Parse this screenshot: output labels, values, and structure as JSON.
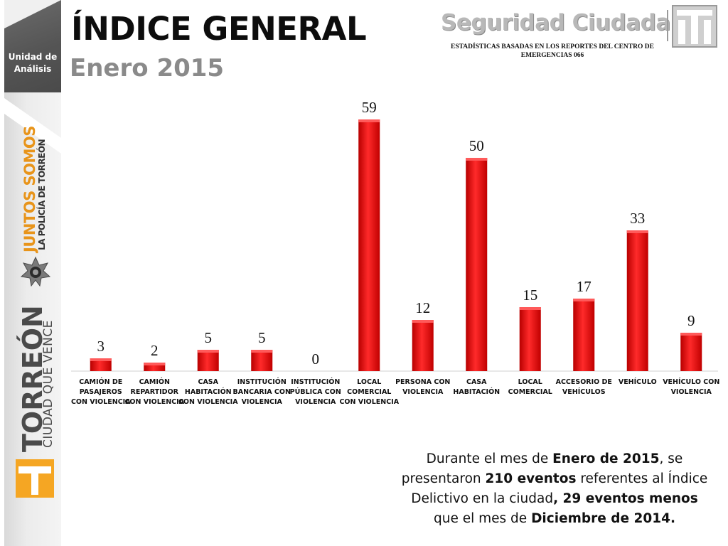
{
  "sidebar": {
    "unit_label_line1": "Unidad de",
    "unit_label_line2": "Análisis",
    "juntos_line1": "JUNTOS SOMOS",
    "juntos_line2": "LA POLICÍA DE TORREÓN",
    "city_name": "TORREÓN",
    "city_slogan": "CIUDAD QUE VENCE"
  },
  "header": {
    "title": "ÍNDICE GENERAL",
    "subtitle": "Enero 2015",
    "brand": "Seguridad Ciudadana",
    "caption": "ESTADÍSTICAS BASADAS EN LOS REPORTES DEL CENTRO DE EMERGENCIAS 066"
  },
  "colors": {
    "bar_top": "#ff2a2a",
    "bar_bottom": "#b00000",
    "accent_orange": "#e8941a"
  },
  "chart_data": {
    "type": "bar",
    "title": "",
    "xlabel": "",
    "ylabel": "",
    "categories": [
      [
        "CAMIÓN DE",
        "PASAJEROS",
        "CON VIOLENCIA"
      ],
      [
        "CAMIÓN",
        "REPARTIDOR",
        "CON VIOLENCIA"
      ],
      [
        "CASA",
        "HABITACIÓN",
        "CON VIOLENCIA"
      ],
      [
        "INSTITUCIÓN",
        "BANCARIA CON",
        "VIOLENCIA"
      ],
      [
        "INSTITUCIÓN",
        "PÚBLICA CON",
        "VIOLENCIA"
      ],
      [
        "LOCAL",
        "COMERCIAL",
        "CON VIOLENCIA"
      ],
      [
        "PERSONA CON",
        "VIOLENCIA"
      ],
      [
        "CASA",
        "HABITACIÓN"
      ],
      [
        "LOCAL",
        "COMERCIAL"
      ],
      [
        "ACCESORIO DE",
        "VEHÍCULOS"
      ],
      [
        "VEHÍCULO"
      ],
      [
        "VEHÍCULO CON",
        "VIOLENCIA"
      ]
    ],
    "values": [
      3,
      2,
      5,
      5,
      0,
      59,
      12,
      50,
      15,
      17,
      33,
      9
    ],
    "ylim": [
      0,
      59
    ],
    "grid": false,
    "legend": "none",
    "data_labels": true
  },
  "summary": {
    "p1": "Durante el mes de ",
    "b1": "Enero de 2015",
    "p2": ", se presentaron ",
    "b2": "210 eventos",
    "p3": " referentes al Índice Delictivo en la ciudad",
    "b3": ", 29 eventos menos",
    "p4": " que el mes de ",
    "b4": "Diciembre de 2014."
  }
}
